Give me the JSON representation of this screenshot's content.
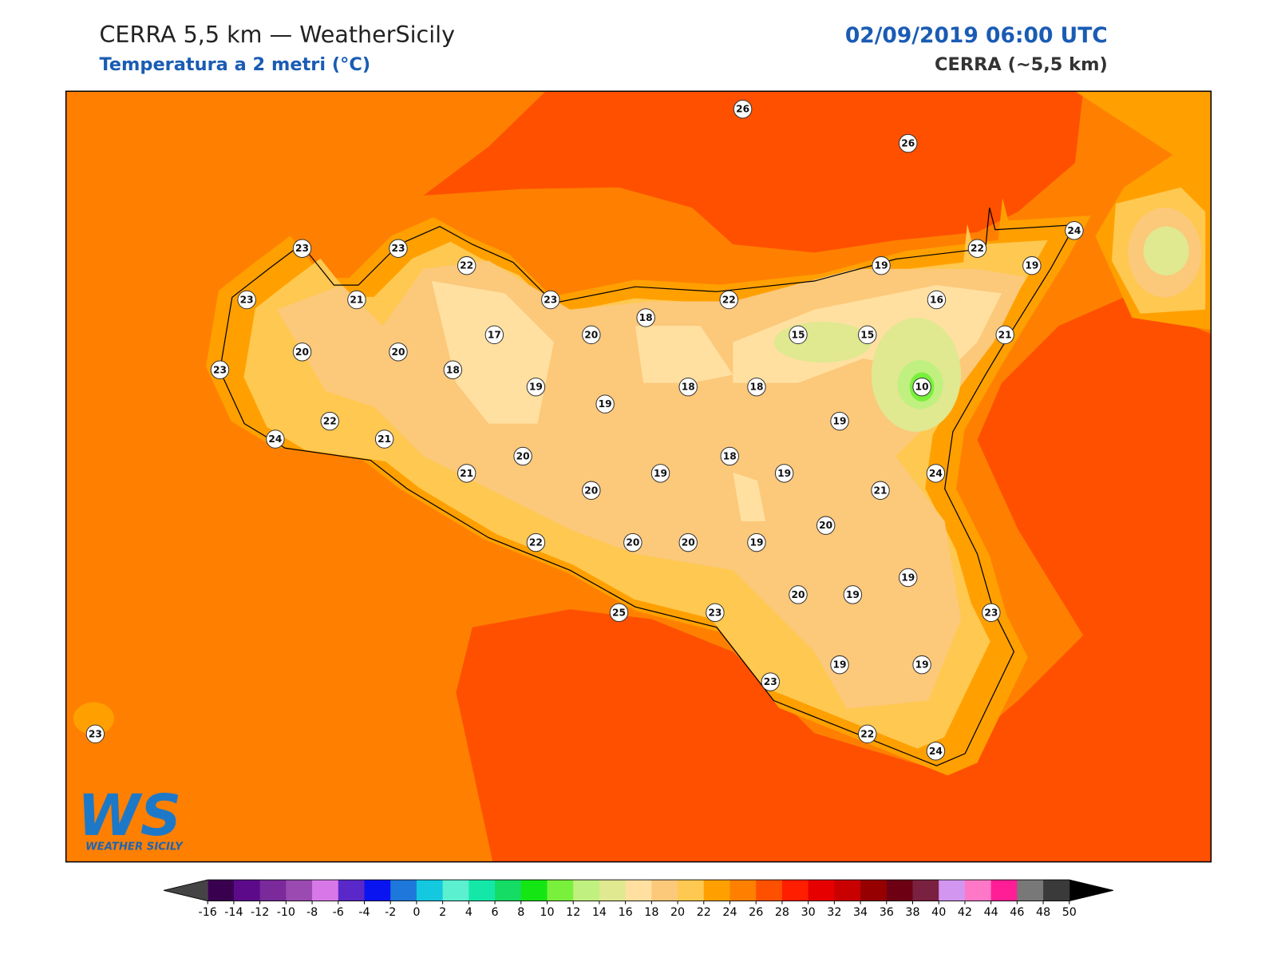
{
  "header": {
    "title": "CERRA 5,5 km — WeatherSicily",
    "subtitle": "Temperatura a 2 metri (°C)",
    "datetime": "02/09/2019 06:00 UTC",
    "model": "CERRA (~5,5 km)"
  },
  "logo": {
    "text": "WS",
    "subtitle": "WEATHER SICILY"
  },
  "stations": [
    26,
    26,
    23,
    23,
    22,
    19,
    22,
    19,
    24,
    23,
    21,
    23,
    22,
    16,
    18,
    17,
    20,
    15,
    15,
    21,
    20,
    20,
    23,
    18,
    19,
    18,
    18,
    10,
    19,
    19,
    22,
    24,
    21,
    20,
    18,
    21,
    19,
    19,
    24,
    20,
    21,
    20,
    22,
    20,
    20,
    19,
    19,
    20,
    19,
    25,
    23,
    23,
    19,
    19,
    23,
    23,
    22,
    24
  ],
  "colorbar": {
    "ticks": [
      -16,
      -14,
      -12,
      -10,
      -8,
      -6,
      -4,
      -2,
      0,
      2,
      4,
      6,
      8,
      10,
      12,
      14,
      16,
      18,
      20,
      22,
      24,
      26,
      28,
      30,
      32,
      34,
      36,
      38,
      40,
      42,
      44,
      46,
      48,
      50
    ],
    "colors": [
      "#3a0050",
      "#5c0a8a",
      "#7a2a9a",
      "#9a4ab0",
      "#d878e8",
      "#5a28c8",
      "#0a14f0",
      "#1e78dc",
      "#14c8e0",
      "#5af0d0",
      "#14e8a8",
      "#14dc64",
      "#14e614",
      "#78f03c",
      "#c0f080",
      "#e0e890",
      "#ffe0a0",
      "#fcc87a",
      "#ffc850",
      "#ffa000",
      "#ff8000",
      "#ff5000",
      "#ff1e00",
      "#e60000",
      "#c80000",
      "#960000",
      "#6e0014",
      "#7a2040",
      "#d296f0",
      "#ff78c8",
      "#ff1e96",
      "#787878",
      "#3a3a3a"
    ],
    "under": "#444444",
    "over": "#000000"
  }
}
